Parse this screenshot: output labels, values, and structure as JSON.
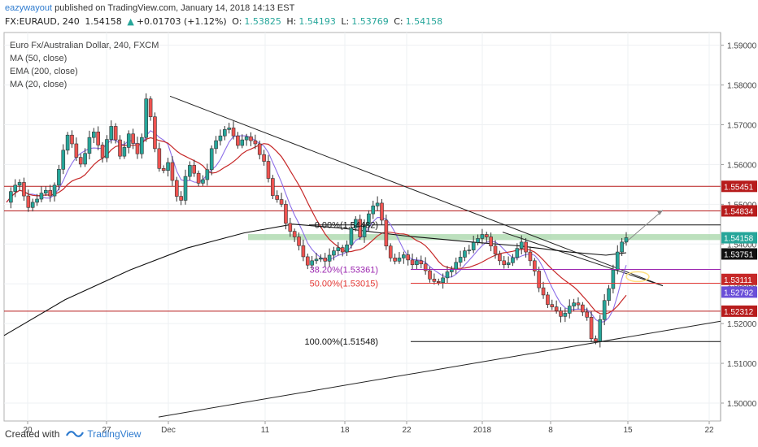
{
  "header": {
    "author": "eazywayout",
    "published_text": "published on TradingView.com, January 14, 2018 14:13 EST",
    "symbol": "FX:EURAUD, 240",
    "last": "1.54158",
    "change": "+0.01703 (+1.12%)",
    "o_label": "O:",
    "o_value": "1.53825",
    "h_label": "H:",
    "h_value": "1.54193",
    "l_label": "L:",
    "l_value": "1.53769",
    "c_label": "C:",
    "c_value": "1.54158"
  },
  "legend": {
    "title": "Euro Fx/Australian Dollar, 240, FXCM",
    "ma50": "MA (50, close)",
    "ema200": "EMA (200, close)",
    "ma20": "MA (20, close)"
  },
  "footer": {
    "created_with": "Created with",
    "brand": "TradingView"
  },
  "colors": {
    "up": "#26a69a",
    "down": "#ef5350",
    "ma50": "#c62828",
    "ema200": "#111111",
    "ma20": "#8c6ee8",
    "resistance": "#b71c1c",
    "fib38": "#9c27b0",
    "fib50": "#e53935",
    "zone": "#a5d6a7",
    "circle": "#ffe082"
  },
  "chart_data": {
    "type": "candlestick",
    "symbol": "EURAUD",
    "timeframe": "240",
    "ylim": [
      1.4955,
      1.5932
    ],
    "y_ticks": [
      "1.59000",
      "1.58000",
      "1.57000",
      "1.56000",
      "1.55000",
      "1.54000",
      "1.53000",
      "1.52000",
      "1.51000",
      "1.50000"
    ],
    "x_ticks": [
      "20",
      "27",
      "Dec",
      "11",
      "18",
      "22",
      "2018",
      "8",
      "15",
      "22"
    ],
    "price_labels": [
      {
        "value": "1.55451",
        "color": "#b71c1c"
      },
      {
        "value": "1.54834",
        "color": "#b71c1c"
      },
      {
        "value": "1.54158",
        "color": "#26a69a"
      },
      {
        "value": "1.53751",
        "color": "#111111"
      },
      {
        "value": "1.53111",
        "color": "#c62828"
      },
      {
        "value": "1.52792",
        "color": "#6a4fd8"
      },
      {
        "value": "1.52312",
        "color": "#b71c1c"
      }
    ],
    "fib_levels": [
      {
        "label": "0.00%(1.54482)",
        "value": 1.54482
      },
      {
        "label": "38.20%(1.53361)",
        "value": 1.53361
      },
      {
        "label": "50.00%(1.53015)",
        "value": 1.53015
      },
      {
        "label": "100.00%(1.51548)",
        "value": 1.51548
      }
    ],
    "horizontal_lines": [
      1.55451,
      1.54834,
      1.52312
    ],
    "support_zone": [
      1.541,
      1.5425
    ],
    "price_path": [
      1.5505,
      1.5532,
      1.5548,
      1.5555,
      1.5521,
      1.5492,
      1.5505,
      1.5513,
      1.5528,
      1.5535,
      1.5521,
      1.5548,
      1.5588,
      1.5636,
      1.5674,
      1.5652,
      1.5618,
      1.5601,
      1.5628,
      1.5668,
      1.5682,
      1.5649,
      1.5617,
      1.5663,
      1.5696,
      1.5662,
      1.5621,
      1.5643,
      1.5677,
      1.5653,
      1.5627,
      1.5668,
      1.5765,
      1.572,
      1.564,
      1.559,
      1.5585,
      1.5605,
      1.556,
      1.552,
      1.551,
      1.557,
      1.5598,
      1.5578,
      1.5553,
      1.5562,
      1.5587,
      1.564,
      1.566,
      1.5672,
      1.5688,
      1.5692,
      1.5672,
      1.5648,
      1.5662,
      1.567,
      1.566,
      1.5652,
      1.5625,
      1.5608,
      1.5565,
      1.5522,
      1.5512,
      1.55,
      1.5452,
      1.5432,
      1.5418,
      1.5396,
      1.5368,
      1.5347,
      1.5358,
      1.5362,
      1.5365,
      1.5357,
      1.5372,
      1.5383,
      1.5391,
      1.538,
      1.5398,
      1.544,
      1.5462,
      1.5418,
      1.5446,
      1.5476,
      1.5496,
      1.5503,
      1.546,
      1.5395,
      1.5365,
      1.5357,
      1.5365,
      1.5373,
      1.536,
      1.5348,
      1.5358,
      1.535,
      1.5333,
      1.5312,
      1.5306,
      1.5303,
      1.5315,
      1.533,
      1.5337,
      1.5354,
      1.5367,
      1.5383,
      1.5385,
      1.5404,
      1.5414,
      1.5424,
      1.5418,
      1.5395,
      1.5375,
      1.5358,
      1.5348,
      1.5353,
      1.5366,
      1.5389,
      1.5405,
      1.538,
      1.5358,
      1.5332,
      1.529,
      1.5272,
      1.5248,
      1.5242,
      1.5232,
      1.5218,
      1.5226,
      1.5244,
      1.5252,
      1.5247,
      1.5229,
      1.5216,
      1.5162,
      1.5155,
      1.521,
      1.5258,
      1.5288,
      1.5335,
      1.538,
      1.5405,
      1.5416
    ]
  }
}
